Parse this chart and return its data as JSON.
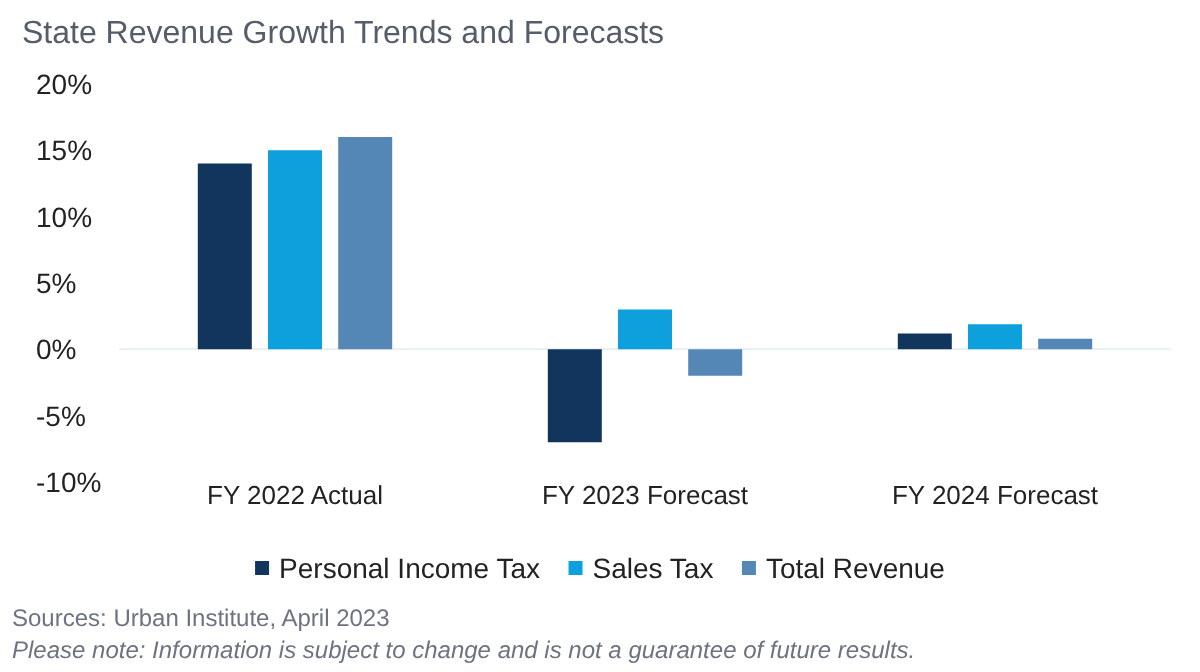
{
  "chart_data": {
    "type": "bar",
    "title": "State Revenue Growth Trends and Forecasts",
    "categories": [
      "FY 2022 Actual",
      "FY 2023 Forecast",
      "FY 2024 Forecast"
    ],
    "series": [
      {
        "name": "Personal Income Tax",
        "color": "#12355e",
        "values": [
          14,
          -7,
          1.2
        ]
      },
      {
        "name": "Sales Tax",
        "color": "#0ea0dc",
        "values": [
          15,
          3,
          1.9
        ]
      },
      {
        "name": "Total Revenue",
        "color": "#5487b6",
        "values": [
          16,
          -2,
          0.8
        ]
      }
    ],
    "ylim": [
      -10,
      20
    ],
    "yticks": [
      {
        "value": -10,
        "label": "-10%"
      },
      {
        "value": -5,
        "label": "-5%"
      },
      {
        "value": 0,
        "label": "0%"
      },
      {
        "value": 5,
        "label": "5%"
      },
      {
        "value": 10,
        "label": "10%"
      },
      {
        "value": 15,
        "label": "15%"
      },
      {
        "value": 20,
        "label": "20%"
      }
    ],
    "legend": "bottom",
    "annotations": [
      "Sources: Urban Institute, April 2023",
      "Please note: Information is subject to change and is not a guarantee of future results."
    ]
  }
}
